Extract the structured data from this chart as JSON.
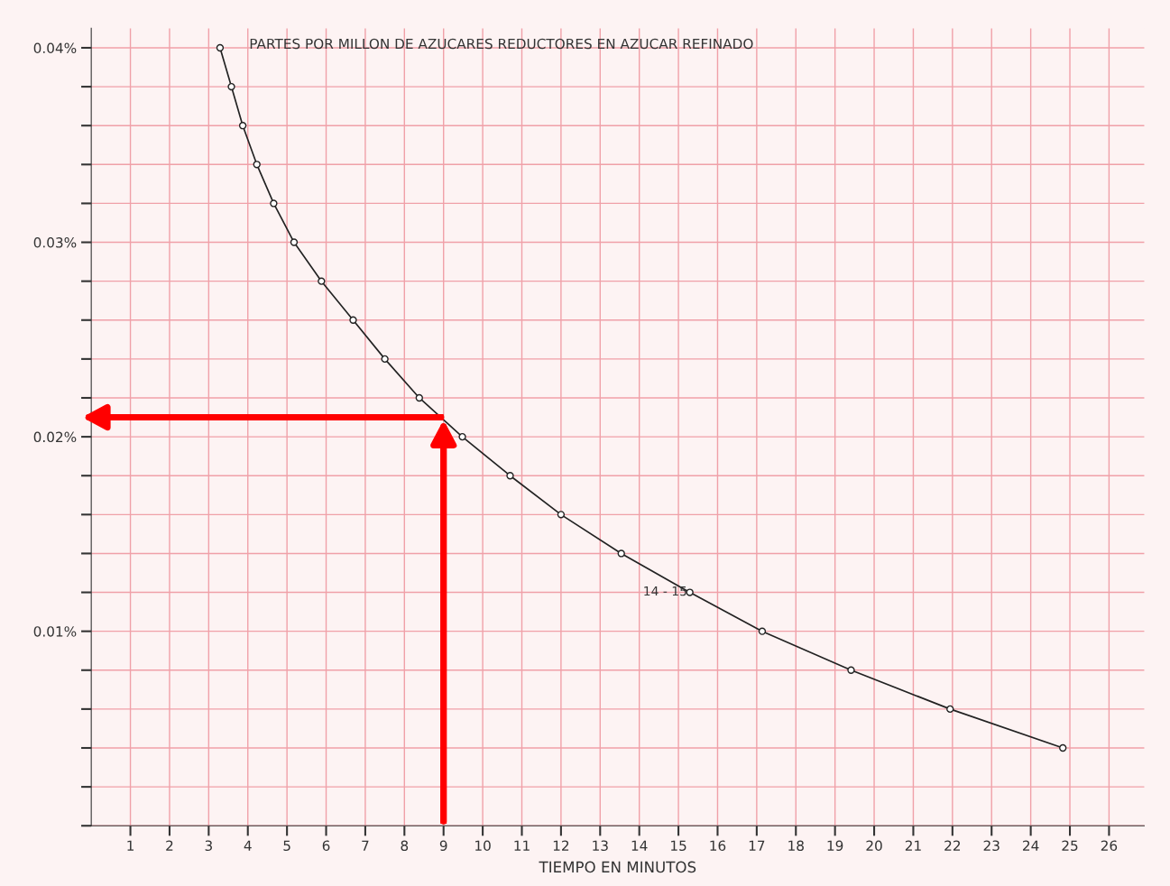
{
  "chart_data": {
    "type": "line",
    "title": "PARTES POR MILLON DE AZUCARES REDUCTORES EN AZUCAR REFINADO",
    "xlabel": "TIEMPO EN MINUTOS",
    "x": [
      3.29,
      3.58,
      3.87,
      4.23,
      4.66,
      5.18,
      5.88,
      6.69,
      7.5,
      8.38,
      9.48,
      10.7,
      12.0,
      13.54,
      15.29,
      17.14,
      19.41,
      21.94,
      24.82
    ],
    "series": [
      {
        "color": "#222222",
        "values": [
          0.04,
          0.038,
          0.036,
          0.034,
          0.032,
          0.03,
          0.028,
          0.026,
          0.024,
          0.022,
          0.02,
          0.018,
          0.016,
          0.014,
          0.012,
          0.01,
          0.008,
          0.006,
          0.004
        ]
      }
    ],
    "marker": "circle",
    "line_style": "solid",
    "grid": true,
    "xlim": [
      0,
      26.9
    ],
    "ylim": [
      0,
      0.041
    ],
    "xticks": [
      1,
      2,
      3,
      4,
      5,
      6,
      7,
      8,
      9,
      10,
      11,
      12,
      13,
      14,
      15,
      16,
      17,
      18,
      19,
      20,
      21,
      22,
      23,
      24,
      25,
      26
    ],
    "yticks": [
      {
        "value": 0,
        "label": null
      },
      {
        "value": 0.002,
        "label": null
      },
      {
        "value": 0.004,
        "label": null
      },
      {
        "value": 0.006,
        "label": null
      },
      {
        "value": 0.008,
        "label": null
      },
      {
        "value": 0.01,
        "label": "0.01%"
      },
      {
        "value": 0.012,
        "label": null
      },
      {
        "value": 0.014,
        "label": null
      },
      {
        "value": 0.016,
        "label": null
      },
      {
        "value": 0.018,
        "label": null
      },
      {
        "value": 0.02,
        "label": "0.02%"
      },
      {
        "value": 0.022,
        "label": null
      },
      {
        "value": 0.024,
        "label": null
      },
      {
        "value": 0.026,
        "label": null
      },
      {
        "value": 0.028,
        "label": null
      },
      {
        "value": 0.03,
        "label": "0.03%"
      },
      {
        "value": 0.032,
        "label": null
      },
      {
        "value": 0.034,
        "label": null
      },
      {
        "value": 0.036,
        "label": null
      },
      {
        "value": 0.038,
        "label": null
      },
      {
        "value": 0.04,
        "label": "0.04%"
      }
    ],
    "ref_lines": [
      {
        "axis": "x",
        "value": 9,
        "color": "#ff0000"
      },
      {
        "axis": "y",
        "value": 0.021,
        "color": "#ff0000"
      }
    ],
    "annotations": [
      "14 - 15"
    ]
  }
}
